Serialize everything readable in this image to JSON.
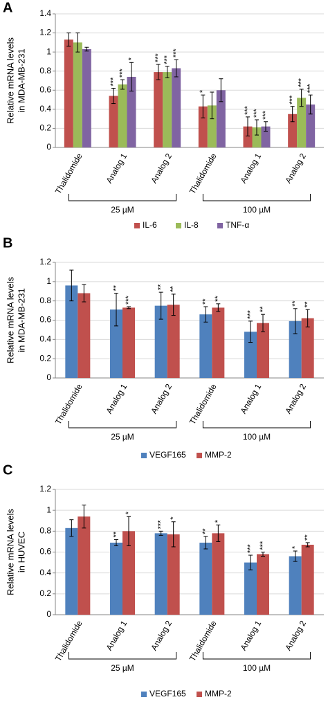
{
  "chart_data": [
    {
      "type": "bar",
      "panel": "A",
      "ylabel": [
        "Relative mRNA levels",
        "in MDA-MB-231"
      ],
      "categories": [
        "Thalidomide",
        "Analog 1",
        "Analog 2",
        "Thalidomide",
        "Analog 1",
        "Analog 2"
      ],
      "groups": [
        "25 µM",
        "100 µM"
      ],
      "ylim": [
        0,
        1.4
      ],
      "yticks": [
        0,
        0.2,
        0.4,
        0.6,
        0.8,
        1,
        1.2,
        1.4
      ],
      "grid": true,
      "legend": "bottom",
      "series": [
        {
          "name": "IL-6",
          "color": "#c0504d",
          "values": [
            1.13,
            0.54,
            0.79,
            0.43,
            0.22,
            0.35
          ],
          "errors": [
            0.07,
            0.08,
            0.08,
            0.12,
            0.1,
            0.08
          ],
          "stars": [
            null,
            "***",
            "***",
            "*",
            "***",
            "***"
          ]
        },
        {
          "name": "IL-8",
          "color": "#9bbb59",
          "values": [
            1.1,
            0.66,
            0.79,
            0.44,
            0.21,
            0.52
          ],
          "errors": [
            0.1,
            0.05,
            0.06,
            0.14,
            0.08,
            0.09
          ],
          "stars": [
            null,
            "***",
            "***",
            null,
            "***",
            "***"
          ]
        },
        {
          "name": "TNF-α",
          "color": "#8064a2",
          "values": [
            1.03,
            0.74,
            0.83,
            0.6,
            0.22,
            0.45
          ],
          "errors": [
            0.02,
            0.15,
            0.09,
            0.12,
            0.05,
            0.1
          ],
          "stars": [
            null,
            "*",
            "***",
            null,
            "***",
            "***"
          ]
        }
      ]
    },
    {
      "type": "bar",
      "panel": "B",
      "ylabel": [
        "Relative mRNA levels",
        "in MDA-MB-231"
      ],
      "categories": [
        "Thalidomide",
        "Analog 1",
        "Analog 2",
        "Thalidomide",
        "Analog 1",
        "Analog 2"
      ],
      "groups": [
        "25 µM",
        "100 µM"
      ],
      "ylim": [
        0,
        1.2
      ],
      "yticks": [
        0,
        0.2,
        0.4,
        0.6,
        0.8,
        1,
        1.2
      ],
      "grid": true,
      "legend": "bottom",
      "series": [
        {
          "name": "VEGF165",
          "color": "#4f81bd",
          "values": [
            0.96,
            0.71,
            0.75,
            0.66,
            0.48,
            0.59
          ],
          "errors": [
            0.16,
            0.17,
            0.14,
            0.08,
            0.11,
            0.13
          ],
          "stars": [
            null,
            "**",
            "**",
            "**",
            "***",
            "**"
          ]
        },
        {
          "name": "MMP-2",
          "color": "#c0504d",
          "values": [
            0.88,
            0.73,
            0.76,
            0.73,
            0.57,
            0.62
          ],
          "errors": [
            0.09,
            0.01,
            0.11,
            0.04,
            0.09,
            0.09
          ],
          "stars": [
            null,
            "***",
            "**",
            "**",
            "**",
            "**"
          ]
        }
      ]
    },
    {
      "type": "bar",
      "panel": "C",
      "ylabel": [
        "Relative mRNA levels",
        "in HUVEC"
      ],
      "categories": [
        "Thalidomide",
        "Analog 1",
        "Analog 2",
        "Thalidomide",
        "Analog 1",
        "Analog 2"
      ],
      "groups": [
        "25 µM",
        "100 µM"
      ],
      "ylim": [
        0,
        1.2
      ],
      "yticks": [
        0,
        0.2,
        0.4,
        0.6,
        0.8,
        1,
        1.2
      ],
      "grid": true,
      "legend": "bottom",
      "series": [
        {
          "name": "VEGF165",
          "color": "#4f81bd",
          "values": [
            0.83,
            0.69,
            0.78,
            0.69,
            0.5,
            0.56
          ],
          "errors": [
            0.08,
            0.03,
            0.02,
            0.06,
            0.07,
            0.05
          ],
          "stars": [
            null,
            "**",
            "***",
            "**",
            "***",
            "*"
          ]
        },
        {
          "name": "MMP-2",
          "color": "#c0504d",
          "values": [
            0.94,
            0.8,
            0.77,
            0.78,
            0.58,
            0.67
          ],
          "errors": [
            0.11,
            0.14,
            0.12,
            0.08,
            0.02,
            0.02
          ],
          "stars": [
            null,
            "*",
            "*",
            "*",
            "***",
            "**"
          ]
        }
      ]
    }
  ]
}
